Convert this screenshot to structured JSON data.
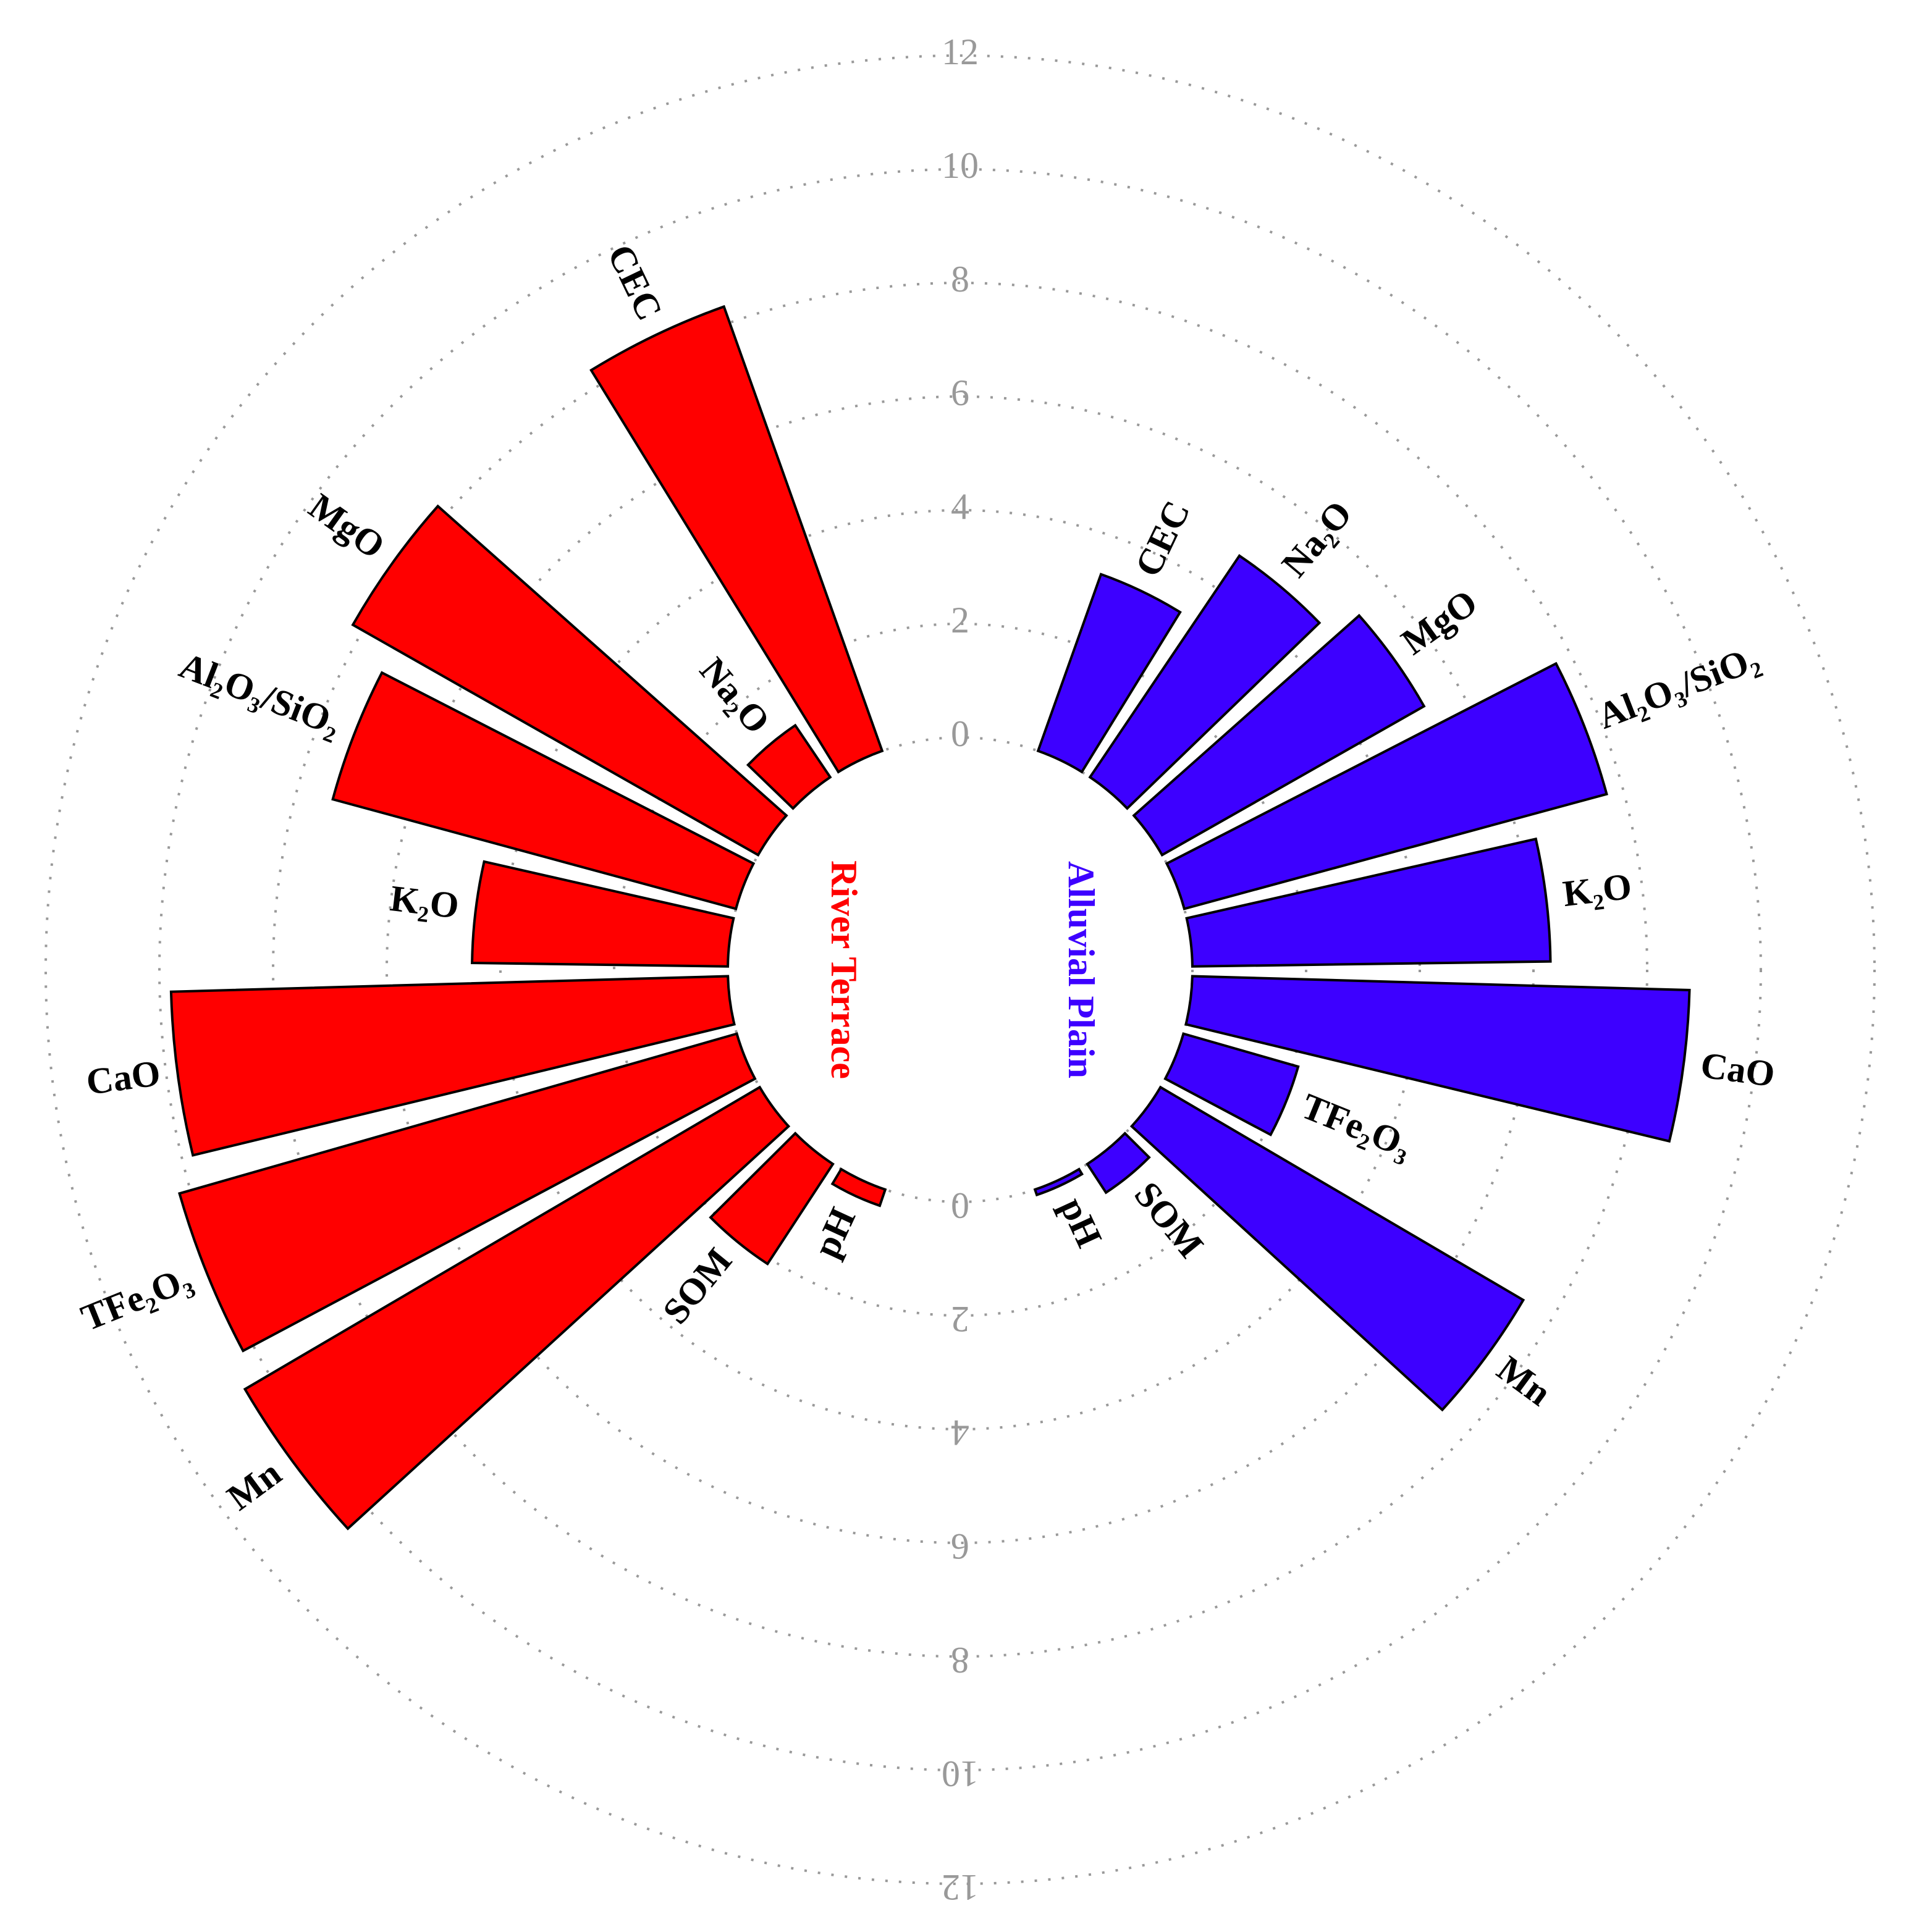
{
  "chart_data": {
    "type": "polar_bar",
    "categories": [
      "CEC",
      "Na₂O",
      "MgO",
      "Al₂O₃/SiO₂",
      "K₂O",
      "CaO",
      "TFe₂O₃",
      "Mn",
      "SOM",
      "pH"
    ],
    "series": [
      {
        "name": "River Terrace",
        "color": "#ff0000",
        "values": [
          8.3,
          1.1,
          8.2,
          7.35,
          4.5,
          9.8,
          10.2,
          10.5,
          2.1,
          0.3
        ]
      },
      {
        "name": "Alluvial Plain",
        "color": "#3d00ff",
        "values": [
          3.3,
          4.7,
          5.3,
          7.7,
          6.3,
          8.75,
          2.1,
          7.4,
          0.6,
          0.1
        ]
      }
    ],
    "ylim": [
      0,
      12
    ],
    "yticks": [
      0,
      2,
      4,
      6,
      8,
      10,
      12
    ],
    "grid": true
  }
}
